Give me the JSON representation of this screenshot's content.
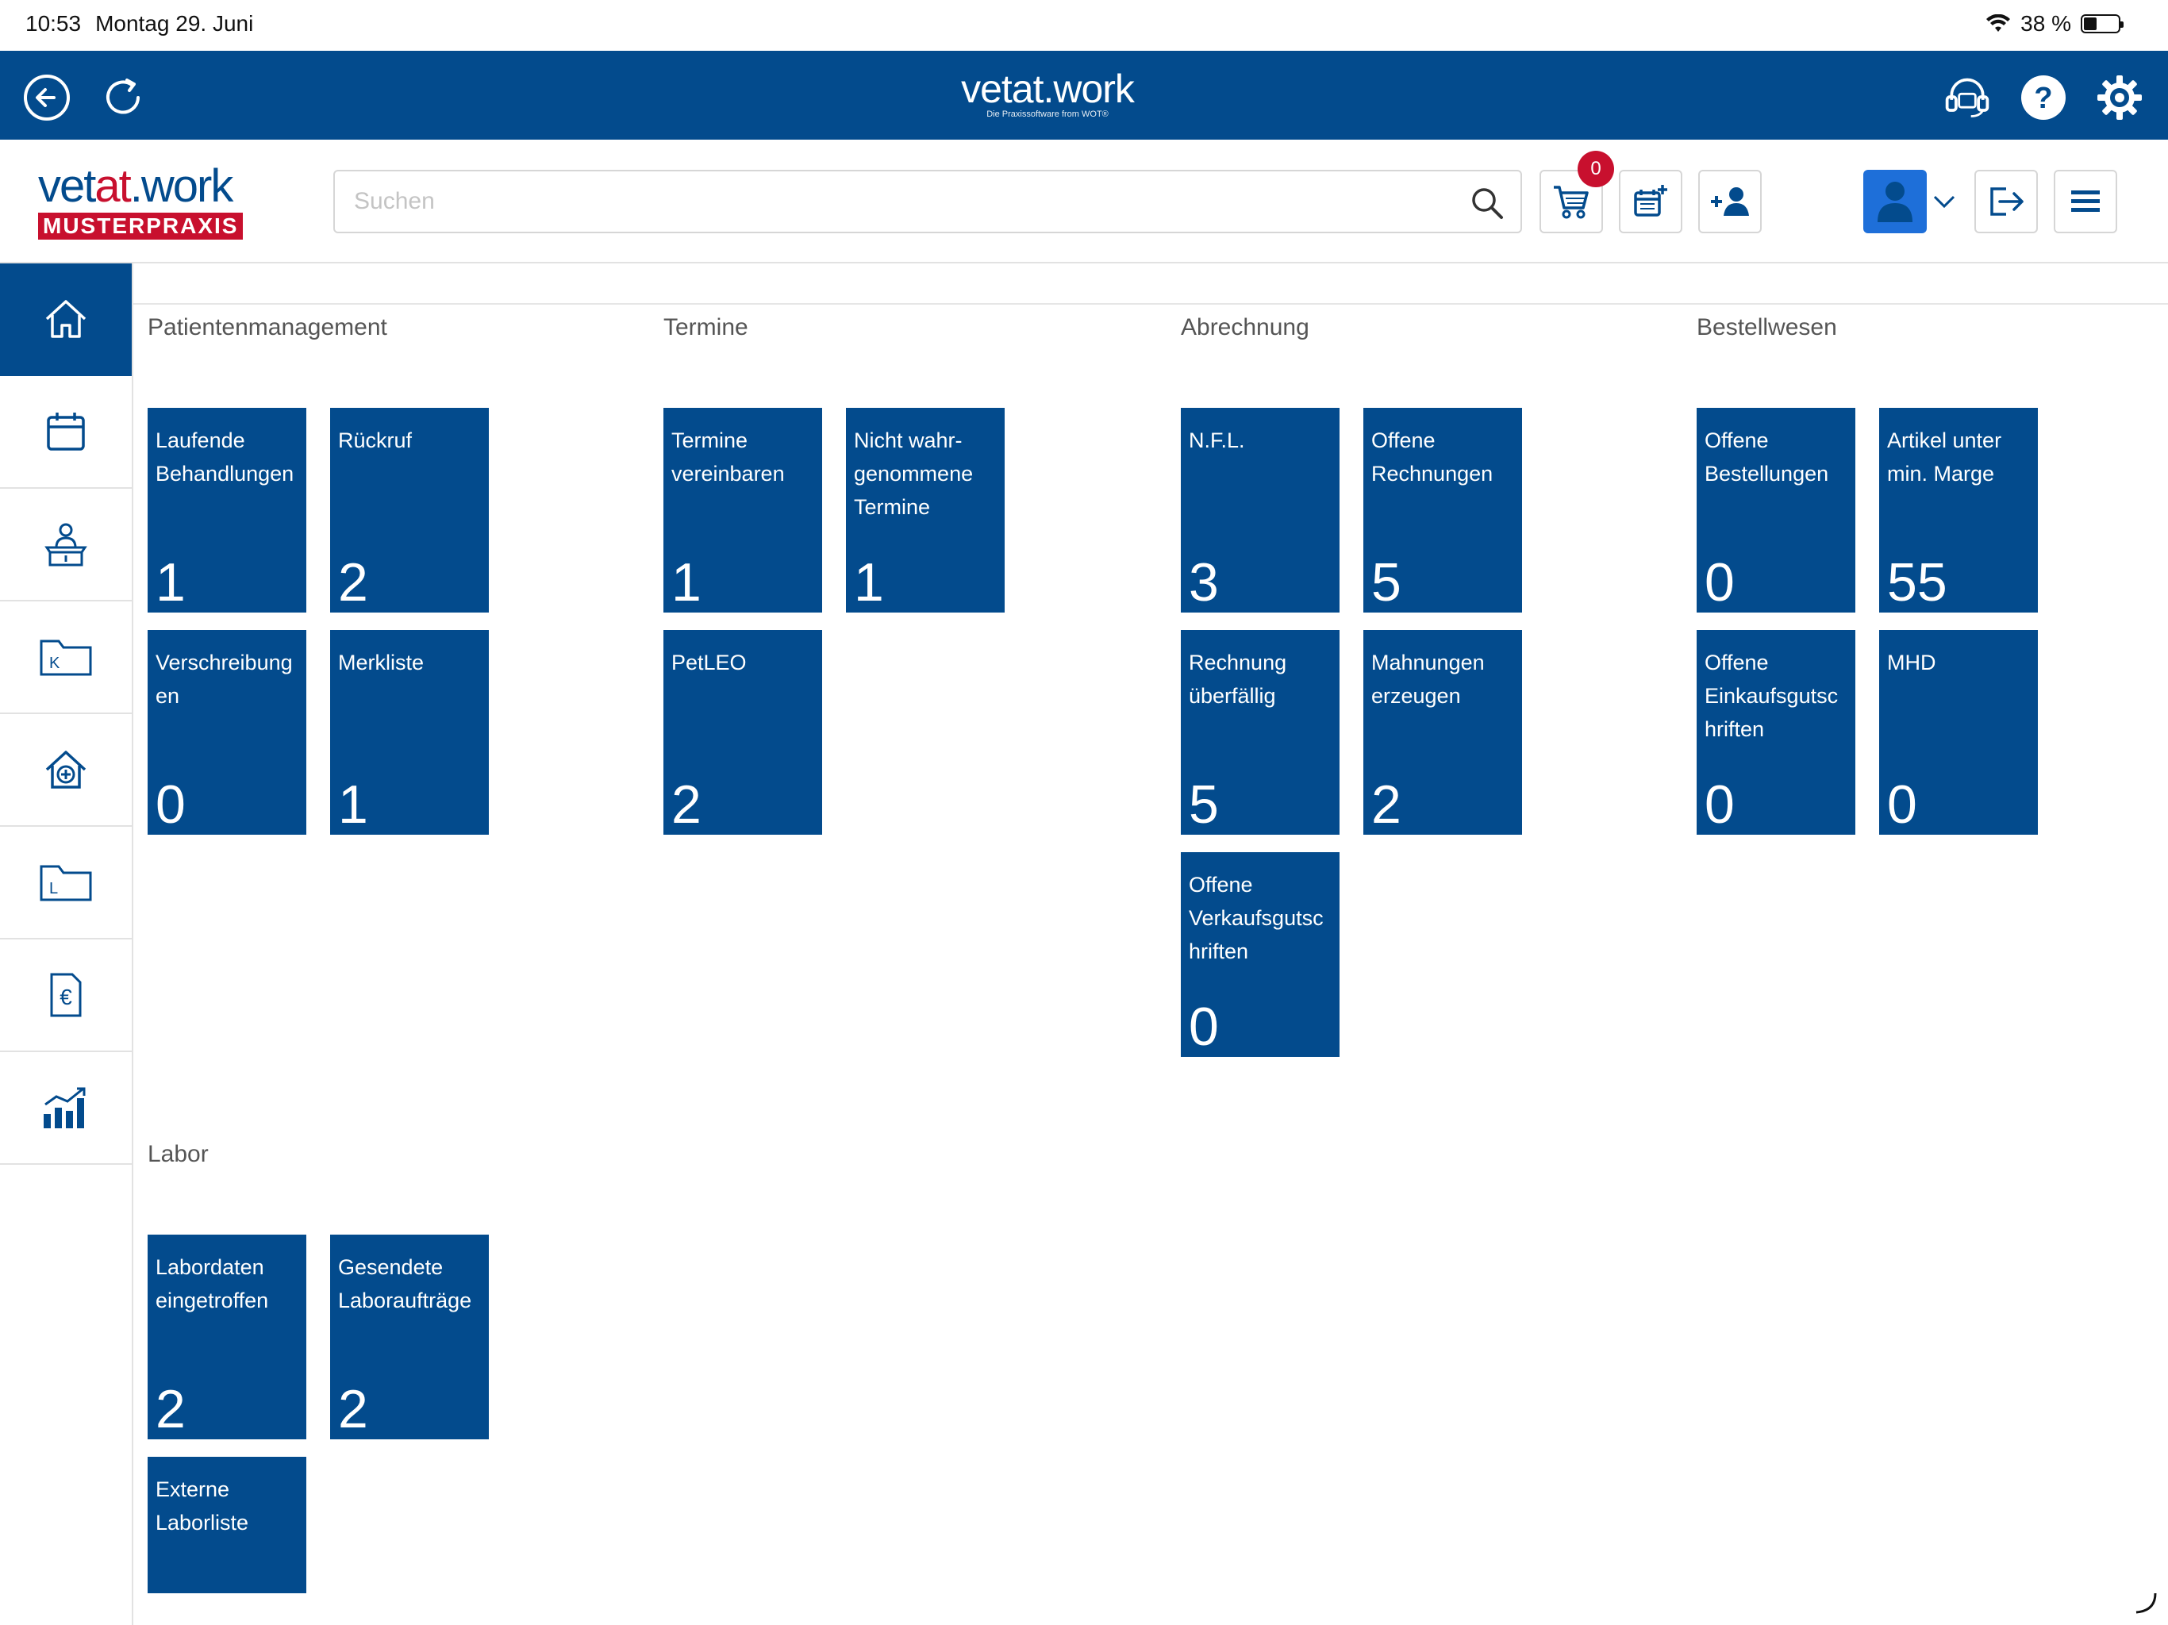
{
  "status_bar": {
    "time": "10:53",
    "date": "Montag 29. Juni",
    "battery": "38 %",
    "wifi_icon": "wifi-icon"
  },
  "app_bar": {
    "brand": "vetat.work",
    "brand_tagline": "Die Praxissoftware from WOT®",
    "left_icons": [
      "back-icon",
      "refresh-icon"
    ],
    "right_icons": [
      "headset-icon",
      "help-icon",
      "settings-icon"
    ],
    "color": "#034b8d"
  },
  "header": {
    "logo_word_part1": "vet",
    "logo_word_part2": "at",
    "logo_word_part3": ".work",
    "logo_badge": "MUSTERPRAXIS",
    "search_placeholder": "Suchen",
    "search_value": "",
    "cart_count": "0",
    "buttons": [
      "cart-icon",
      "add-appointment-icon",
      "add-user-icon",
      "user-avatar",
      "logout-icon",
      "menu-icon"
    ]
  },
  "sidebar": {
    "items": [
      {
        "icon": "home-icon",
        "active": true
      },
      {
        "icon": "calendar-icon",
        "active": false
      },
      {
        "icon": "reception-icon",
        "active": false
      },
      {
        "icon": "folder-k-icon",
        "active": false
      },
      {
        "icon": "clinic-icon",
        "active": false
      },
      {
        "icon": "folder-l-icon",
        "active": false
      },
      {
        "icon": "euro-document-icon",
        "active": false
      },
      {
        "icon": "statistics-icon",
        "active": false
      }
    ]
  },
  "sections": {
    "patientenmanagement": {
      "title": "Patientenmanagement",
      "tiles": [
        {
          "label": "Laufende Behandlungen",
          "count": "1"
        },
        {
          "label": "Rückruf",
          "count": "2"
        },
        {
          "label": "Verschreibung en",
          "count": "0"
        },
        {
          "label": "Merkliste",
          "count": "1"
        }
      ]
    },
    "termine": {
      "title": "Termine",
      "tiles": [
        {
          "label": "Termine vereinbaren",
          "count": "1"
        },
        {
          "label": "Nicht wahr-genommene Termine",
          "count": "1"
        },
        {
          "label": "PetLEO",
          "count": "2"
        }
      ]
    },
    "abrechnung": {
      "title": "Abrechnung",
      "tiles": [
        {
          "label": "N.F.L.",
          "count": "3"
        },
        {
          "label": "Offene Rechnungen",
          "count": "5"
        },
        {
          "label": "Rechnung überfällig",
          "count": "5"
        },
        {
          "label": "Mahnungen erzeugen",
          "count": "2"
        },
        {
          "label": "Offene Verkaufsgutsc hriften",
          "count": "0"
        }
      ]
    },
    "bestellwesen": {
      "title": "Bestellwesen",
      "tiles": [
        {
          "label": "Offene Bestellungen",
          "count": "0"
        },
        {
          "label": "Artikel unter min. Marge",
          "count": "55"
        },
        {
          "label": "Offene Einkaufsgutsc hriften",
          "count": "0"
        },
        {
          "label": "MHD",
          "count": "0"
        }
      ]
    },
    "labor": {
      "title": "Labor",
      "tiles": [
        {
          "label": "Labordaten eingetroffen",
          "count": "2"
        },
        {
          "label": "Gesendete Laboraufträge",
          "count": "2"
        },
        {
          "label": "Externe Laborliste",
          "count": ""
        }
      ]
    }
  },
  "colors": {
    "primary": "#034b8d",
    "accent_red": "#c8102e",
    "avatar_blue": "#1e6fd9"
  }
}
